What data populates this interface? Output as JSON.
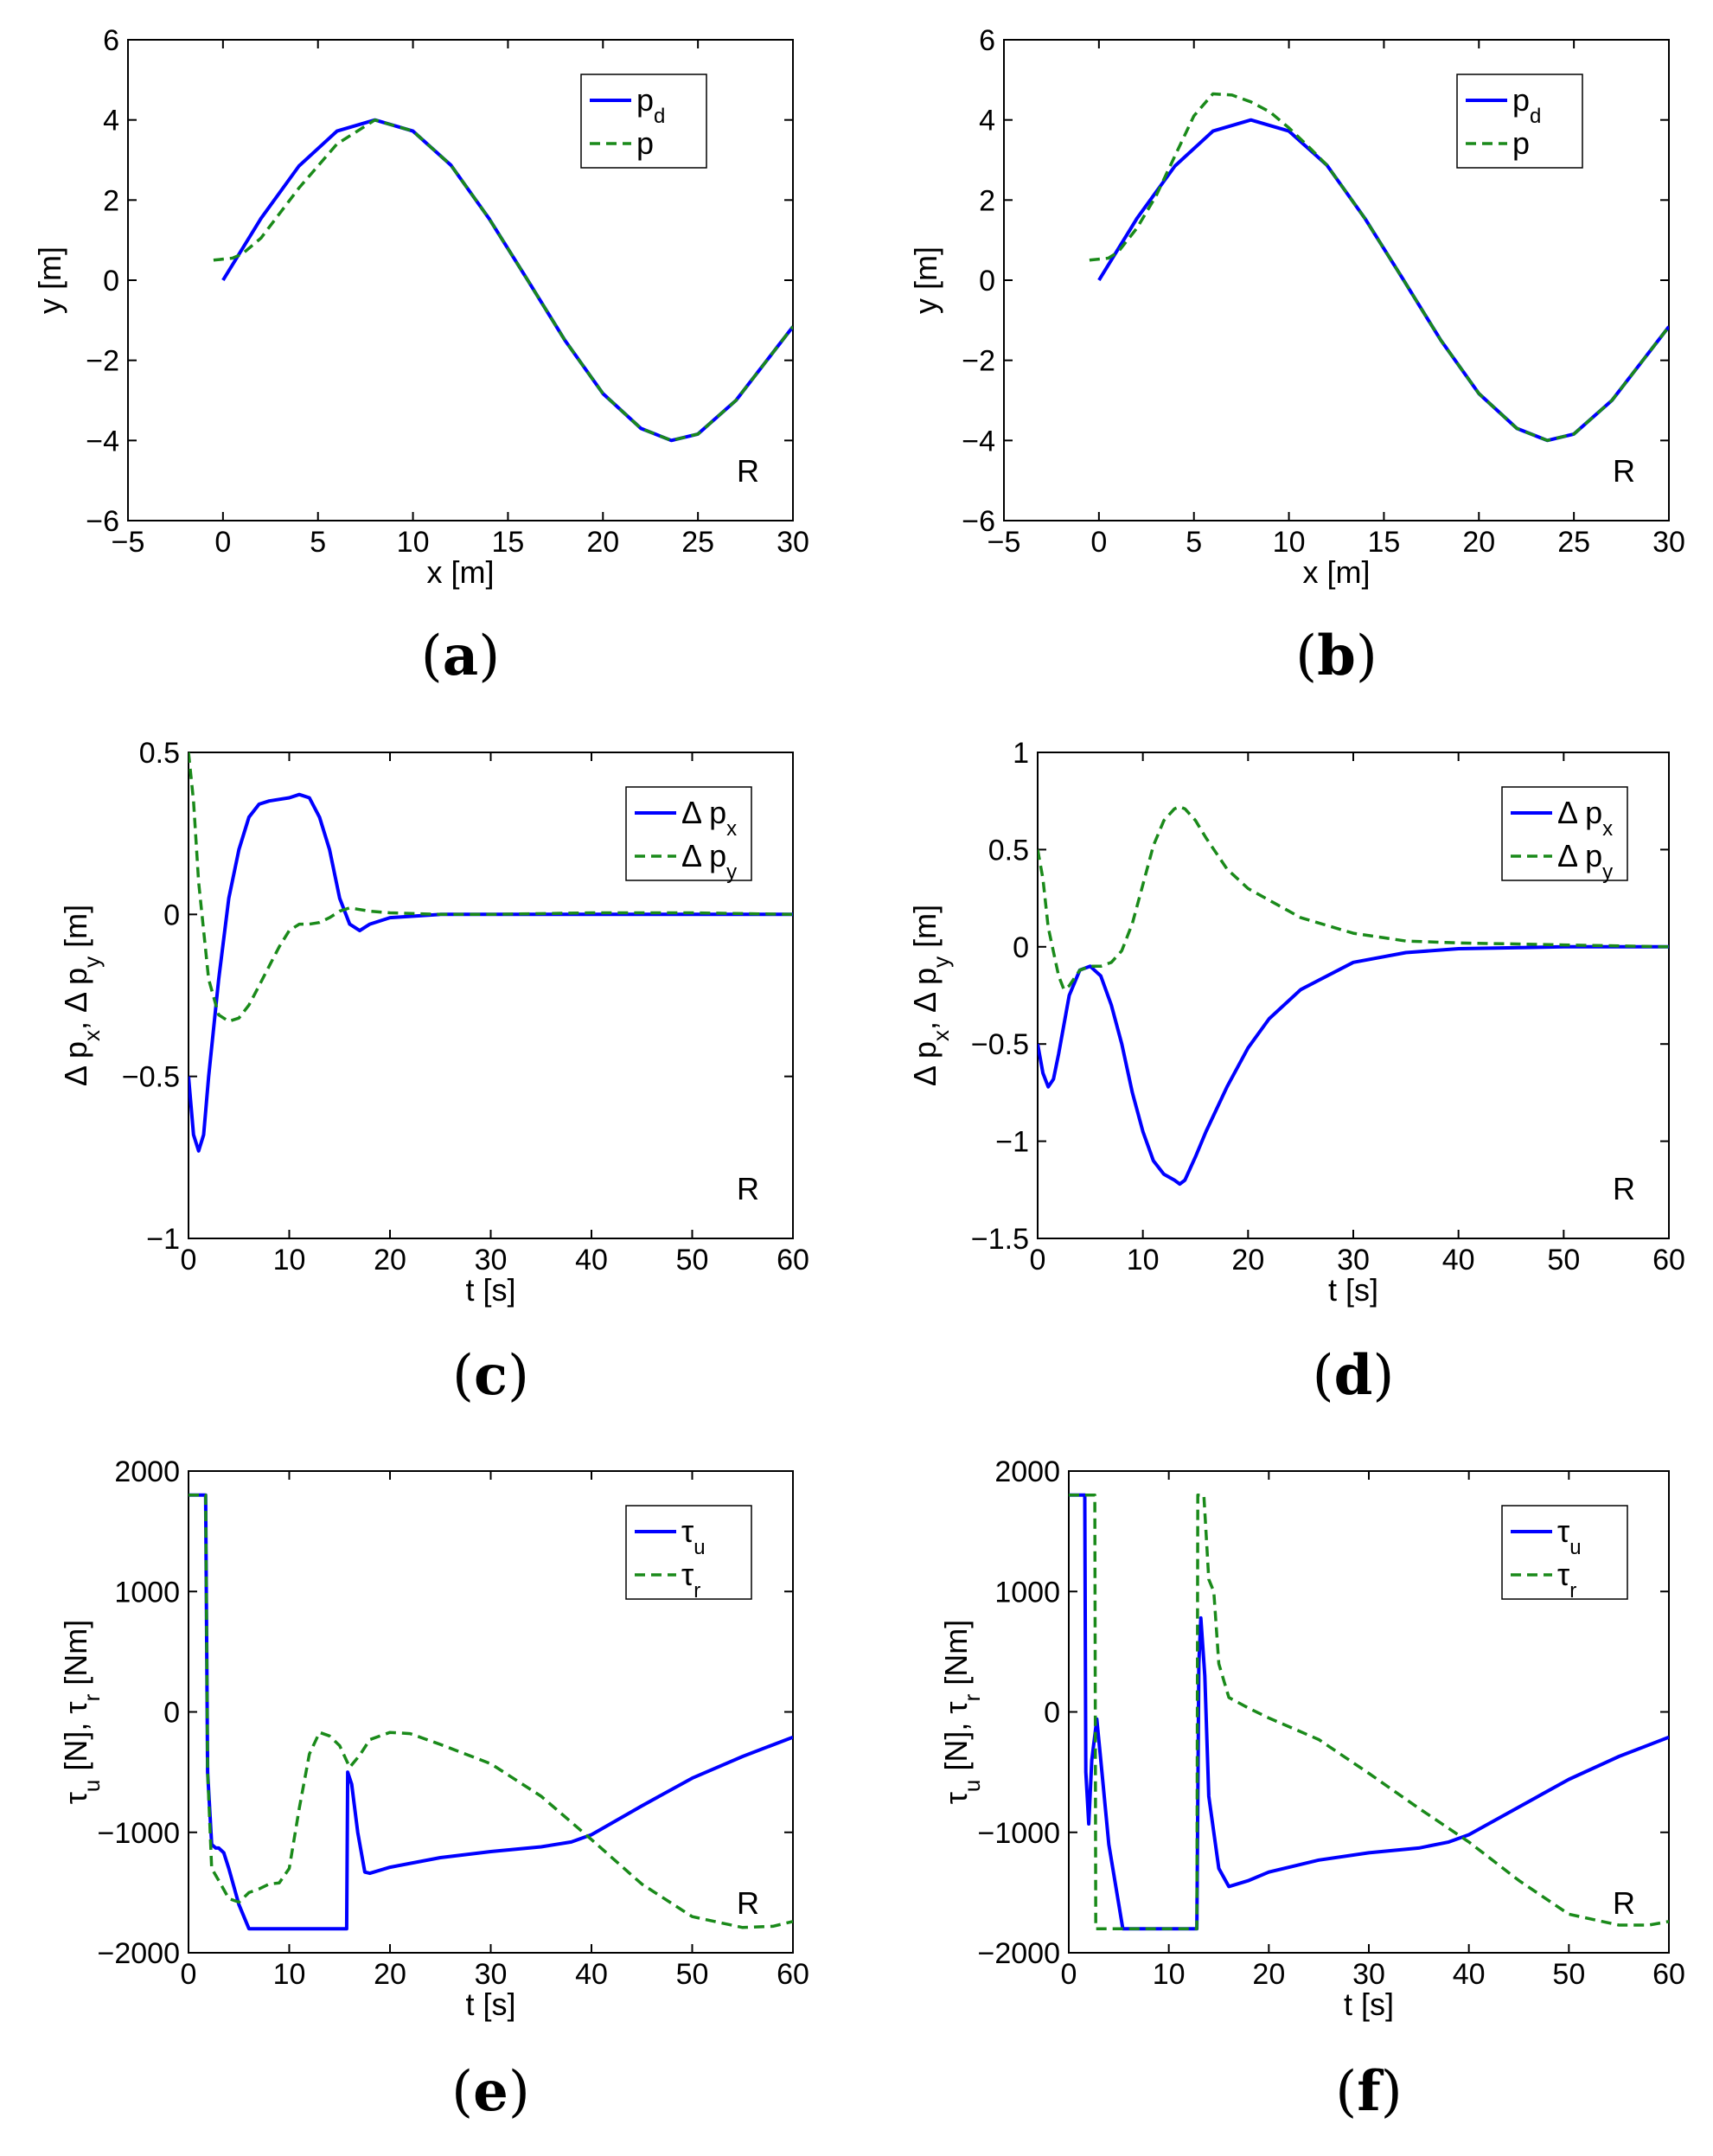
{
  "colors": {
    "blue": "#0000ff",
    "green": "#1a8a1a"
  },
  "chart_data": [
    {
      "type": "line",
      "caption": "(a)",
      "xlabel": "x [m]",
      "ylabel": "y [m]",
      "xlim": [
        -5,
        30
      ],
      "ylim": [
        -6,
        6
      ],
      "xticks": [
        -5,
        0,
        5,
        10,
        15,
        20,
        25,
        30
      ],
      "yticks": [
        -6,
        -4,
        -2,
        0,
        2,
        4,
        6
      ],
      "corner_label": "R",
      "legend": [
        {
          "base": "p",
          "sub": "d"
        },
        {
          "base": "p",
          "sub": ""
        }
      ],
      "series": [
        {
          "name": "p_d",
          "style": "solid",
          "color": "blue",
          "x": [
            0,
            2,
            4,
            6,
            8,
            10,
            12,
            14,
            16,
            18,
            20,
            22,
            23.6,
            25,
            27,
            30
          ],
          "y": [
            0,
            1.54,
            2.85,
            3.72,
            4.0,
            3.72,
            2.87,
            1.54,
            0.03,
            -1.5,
            -2.83,
            -3.7,
            -4.0,
            -3.84,
            -3.0,
            -1.16
          ]
        },
        {
          "name": "p",
          "style": "dashed",
          "color": "green",
          "x": [
            -0.5,
            0.5,
            1,
            2,
            4,
            6,
            8,
            10,
            12,
            14,
            16,
            18,
            20,
            22,
            23.6,
            25,
            27,
            30
          ],
          "y": [
            0.5,
            0.55,
            0.65,
            1.05,
            2.3,
            3.4,
            4.0,
            3.72,
            2.87,
            1.54,
            0.03,
            -1.5,
            -2.83,
            -3.7,
            -4.0,
            -3.84,
            -3.0,
            -1.16
          ]
        }
      ]
    },
    {
      "type": "line",
      "caption": "(b)",
      "xlabel": "x [m]",
      "ylabel": "y [m]",
      "xlim": [
        -5,
        30
      ],
      "ylim": [
        -6,
        6
      ],
      "xticks": [
        -5,
        0,
        5,
        10,
        15,
        20,
        25,
        30
      ],
      "yticks": [
        -6,
        -4,
        -2,
        0,
        2,
        4,
        6
      ],
      "corner_label": "R",
      "legend": [
        {
          "base": "p",
          "sub": "d"
        },
        {
          "base": "p",
          "sub": ""
        }
      ],
      "series": [
        {
          "name": "p_d",
          "style": "solid",
          "color": "blue",
          "x": [
            0,
            2,
            4,
            6,
            8,
            10,
            12,
            14,
            16,
            18,
            20,
            22,
            23.6,
            25,
            27,
            30
          ],
          "y": [
            0,
            1.54,
            2.85,
            3.72,
            4.0,
            3.72,
            2.87,
            1.54,
            0.03,
            -1.5,
            -2.83,
            -3.7,
            -4.0,
            -3.84,
            -3.0,
            -1.16
          ]
        },
        {
          "name": "p",
          "style": "dashed",
          "color": "green",
          "x": [
            -0.5,
            0.5,
            1,
            2,
            3,
            4,
            5,
            6,
            7,
            8,
            9,
            10,
            11,
            12,
            14,
            16,
            18,
            20,
            22,
            23.6,
            25,
            27,
            30
          ],
          "y": [
            0.5,
            0.55,
            0.7,
            1.3,
            2.1,
            3.1,
            4.1,
            4.65,
            4.62,
            4.45,
            4.2,
            3.8,
            3.35,
            2.87,
            1.54,
            0.03,
            -1.5,
            -2.83,
            -3.7,
            -4.0,
            -3.84,
            -3.0,
            -1.16
          ]
        }
      ]
    },
    {
      "type": "line",
      "caption": "(c)",
      "xlabel": "t [s]",
      "ylabel": "Δ p_x, Δ p_y [m]",
      "xlim": [
        0,
        60
      ],
      "ylim": [
        -1,
        0.5
      ],
      "xticks": [
        0,
        10,
        20,
        30,
        40,
        50,
        60
      ],
      "yticks": [
        -1,
        -0.5,
        0,
        0.5
      ],
      "corner_label": "R",
      "legend": [
        {
          "base": "Δ p",
          "sub": "x"
        },
        {
          "base": "Δ p",
          "sub": "y"
        }
      ],
      "series": [
        {
          "name": "Δ p_x",
          "style": "solid",
          "color": "blue",
          "x": [
            0,
            0.5,
            1,
            1.5,
            2,
            3,
            4,
            5,
            6,
            7,
            8,
            9,
            10,
            11,
            12,
            13,
            14,
            15,
            16,
            17,
            18,
            20,
            25,
            30,
            40,
            50,
            60
          ],
          "y": [
            -0.5,
            -0.68,
            -0.73,
            -0.68,
            -0.5,
            -0.2,
            0.05,
            0.2,
            0.3,
            0.34,
            0.35,
            0.355,
            0.36,
            0.37,
            0.36,
            0.3,
            0.2,
            0.05,
            -0.03,
            -0.05,
            -0.03,
            -0.01,
            0,
            0,
            0,
            0,
            0
          ]
        },
        {
          "name": "Δ p_y",
          "style": "dashed",
          "color": "green",
          "x": [
            0,
            0.5,
            1,
            2,
            3,
            4,
            5,
            6,
            7,
            8,
            9,
            10,
            11,
            12,
            13,
            14,
            15,
            16,
            17,
            18,
            20,
            25,
            30,
            40,
            50,
            60
          ],
          "y": [
            0.5,
            0.35,
            0.1,
            -0.2,
            -0.31,
            -0.33,
            -0.32,
            -0.28,
            -0.22,
            -0.16,
            -0.1,
            -0.05,
            -0.03,
            -0.03,
            -0.025,
            -0.01,
            0.01,
            0.02,
            0.015,
            0.01,
            0.005,
            0,
            0,
            0.005,
            0.005,
            0
          ]
        }
      ]
    },
    {
      "type": "line",
      "caption": "(d)",
      "xlabel": "t [s]",
      "ylabel": "Δ p_x, Δ p_y [m]",
      "xlim": [
        0,
        60
      ],
      "ylim": [
        -1.5,
        1
      ],
      "xticks": [
        0,
        10,
        20,
        30,
        40,
        50,
        60
      ],
      "yticks": [
        -1.5,
        -1,
        -0.5,
        0,
        0.5,
        1
      ],
      "corner_label": "R",
      "legend": [
        {
          "base": "Δ p",
          "sub": "x"
        },
        {
          "base": "Δ p",
          "sub": "y"
        }
      ],
      "series": [
        {
          "name": "Δ p_x",
          "style": "solid",
          "color": "blue",
          "x": [
            0,
            0.5,
            1,
            1.5,
            2,
            3,
            4,
            5,
            6,
            7,
            8,
            9,
            10,
            11,
            12,
            13,
            13.5,
            14,
            15,
            16,
            18,
            20,
            22,
            25,
            30,
            35,
            40,
            50,
            60
          ],
          "y": [
            -0.5,
            -0.65,
            -0.72,
            -0.68,
            -0.55,
            -0.25,
            -0.12,
            -0.1,
            -0.15,
            -0.3,
            -0.5,
            -0.75,
            -0.95,
            -1.1,
            -1.17,
            -1.2,
            -1.22,
            -1.2,
            -1.08,
            -0.95,
            -0.72,
            -0.52,
            -0.37,
            -0.22,
            -0.08,
            -0.03,
            -0.01,
            0,
            0
          ]
        },
        {
          "name": "Δ p_y",
          "style": "dashed",
          "color": "green",
          "x": [
            0,
            0.5,
            1,
            2,
            2.5,
            3,
            4,
            5,
            6,
            7,
            8,
            9,
            10,
            11,
            12,
            13,
            13.5,
            14,
            15,
            16,
            18,
            20,
            25,
            30,
            35,
            40,
            50,
            60
          ],
          "y": [
            0.5,
            0.35,
            0.1,
            -0.15,
            -0.22,
            -0.2,
            -0.12,
            -0.1,
            -0.1,
            -0.08,
            -0.02,
            0.12,
            0.32,
            0.52,
            0.65,
            0.71,
            0.72,
            0.71,
            0.65,
            0.56,
            0.4,
            0.3,
            0.15,
            0.07,
            0.03,
            0.02,
            0.01,
            0
          ]
        }
      ]
    },
    {
      "type": "line",
      "caption": "(e)",
      "xlabel": "t [s]",
      "ylabel": "τ_u [N], τ_r [Nm]",
      "xlim": [
        0,
        60
      ],
      "ylim": [
        -2000,
        2000
      ],
      "xticks": [
        0,
        10,
        20,
        30,
        40,
        50,
        60
      ],
      "yticks": [
        -2000,
        -1000,
        0,
        1000,
        2000
      ],
      "corner_label": "R",
      "legend": [
        {
          "base": "τ",
          "sub": "u"
        },
        {
          "base": "τ",
          "sub": "r"
        }
      ],
      "series": [
        {
          "name": "τ_u",
          "style": "solid",
          "color": "blue",
          "x": [
            0,
            1.7,
            1.9,
            2.3,
            2.7,
            3.0,
            3.5,
            4.0,
            5.0,
            6.0,
            15.7,
            15.8,
            16.2,
            16.8,
            17.5,
            18,
            20,
            25,
            30,
            35,
            38,
            40,
            45,
            50,
            55,
            60
          ],
          "y": [
            1800,
            1800,
            -500,
            -1100,
            -1130,
            -1130,
            -1170,
            -1300,
            -1600,
            -1800,
            -1800,
            -500,
            -600,
            -1000,
            -1330,
            -1340,
            -1290,
            -1210,
            -1160,
            -1120,
            -1080,
            -1020,
            -780,
            -550,
            -370,
            -210
          ]
        },
        {
          "name": "τ_r",
          "style": "dashed",
          "color": "green",
          "x": [
            0,
            1.7,
            1.9,
            2.3,
            3,
            4,
            5,
            6,
            7,
            8,
            9,
            10,
            11,
            12,
            13,
            14,
            15,
            16,
            17,
            18,
            20,
            22,
            25,
            30,
            35,
            40,
            45,
            50,
            55,
            58,
            60
          ],
          "y": [
            1800,
            1800,
            -500,
            -1300,
            -1400,
            -1550,
            -1580,
            -1500,
            -1470,
            -1430,
            -1420,
            -1300,
            -800,
            -350,
            -170,
            -200,
            -280,
            -460,
            -360,
            -230,
            -170,
            -180,
            -270,
            -430,
            -700,
            -1060,
            -1430,
            -1700,
            -1790,
            -1780,
            -1740
          ]
        }
      ]
    },
    {
      "type": "line",
      "caption": "(f)",
      "xlabel": "t [s]",
      "ylabel": "τ_u [N], τ_r [Nm]",
      "xlim": [
        0,
        60
      ],
      "ylim": [
        -2000,
        2000
      ],
      "xticks": [
        0,
        10,
        20,
        30,
        40,
        50,
        60
      ],
      "yticks": [
        -2000,
        -1000,
        0,
        1000,
        2000
      ],
      "corner_label": "R",
      "legend": [
        {
          "base": "τ",
          "sub": "u"
        },
        {
          "base": "τ",
          "sub": "r"
        }
      ],
      "series": [
        {
          "name": "τ_u",
          "style": "solid",
          "color": "blue",
          "x": [
            0,
            1.6,
            1.7,
            2.0,
            2.3,
            2.8,
            3.2,
            4.0,
            5.4,
            12.8,
            13.0,
            13.2,
            13.6,
            14.0,
            15,
            16,
            18,
            20,
            25,
            30,
            35,
            38,
            40,
            45,
            50,
            55,
            60
          ],
          "y": [
            1800,
            1800,
            -500,
            -930,
            -400,
            -60,
            -400,
            -1100,
            -1800,
            -1800,
            400,
            780,
            300,
            -700,
            -1300,
            -1450,
            -1400,
            -1330,
            -1230,
            -1170,
            -1130,
            -1080,
            -1020,
            -790,
            -560,
            -370,
            -210
          ]
        },
        {
          "name": "τ_r",
          "style": "dashed",
          "color": "green",
          "x": [
            0,
            2.6,
            2.7,
            12.8,
            12.9,
            13.5,
            14,
            14.5,
            15,
            16,
            18,
            20,
            25,
            30,
            35,
            40,
            45,
            50,
            55,
            58,
            60
          ],
          "y": [
            1800,
            1800,
            -1800,
            -1800,
            1800,
            1800,
            1100,
            1000,
            400,
            120,
            30,
            -50,
            -230,
            -510,
            -800,
            -1080,
            -1400,
            -1680,
            -1770,
            -1770,
            -1740
          ]
        }
      ]
    }
  ]
}
